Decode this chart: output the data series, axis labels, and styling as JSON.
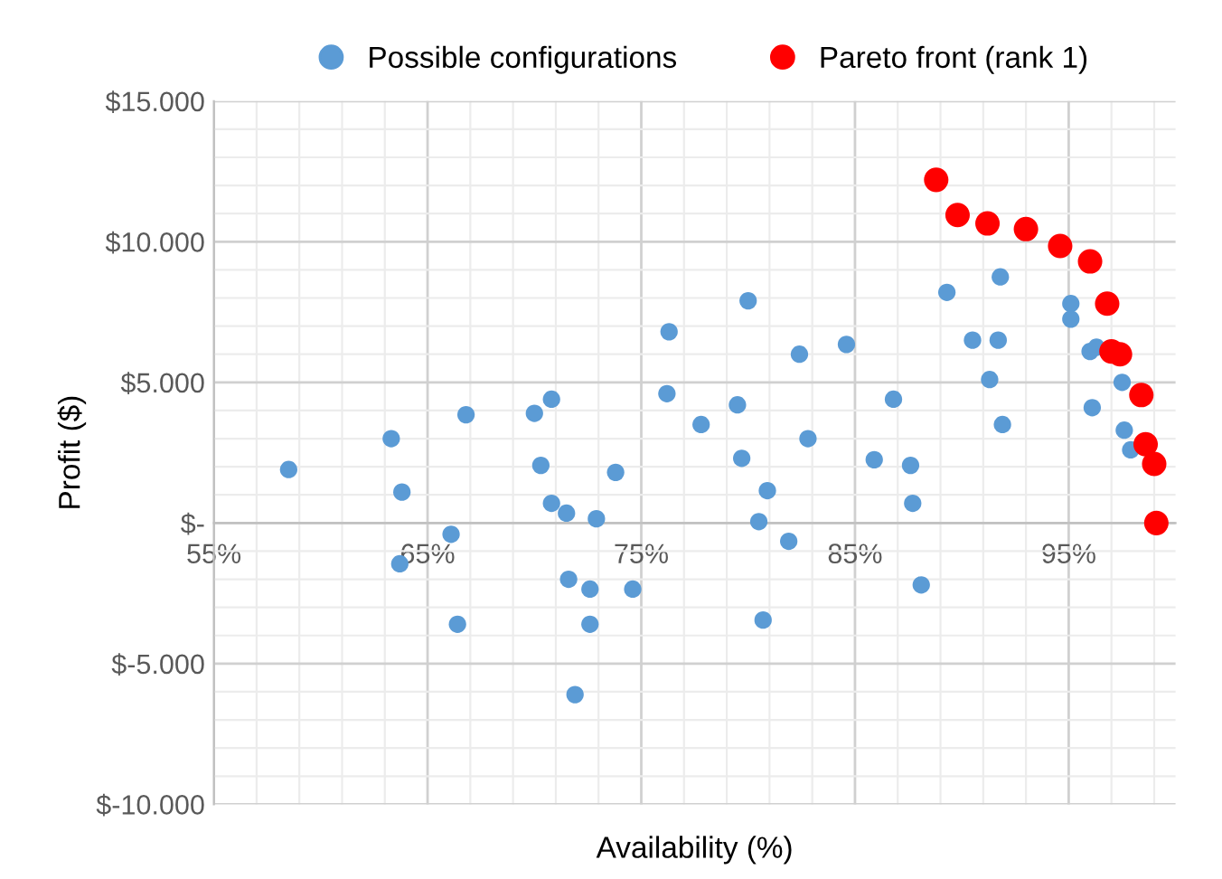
{
  "chart_data": {
    "type": "scatter",
    "xlabel": "Availability (%)",
    "ylabel": "Profit ($)",
    "xlim": [
      55,
      100
    ],
    "ylim": [
      -10000,
      15000
    ],
    "xticks": [
      {
        "value": 55,
        "label": "55%"
      },
      {
        "value": 65,
        "label": "65%"
      },
      {
        "value": 75,
        "label": "75%"
      },
      {
        "value": 85,
        "label": "85%"
      },
      {
        "value": 95,
        "label": "95%"
      }
    ],
    "yticks": [
      {
        "value": -10000,
        "label": "$-10.000"
      },
      {
        "value": -5000,
        "label": "$-5.000"
      },
      {
        "value": 0,
        "label": "$-"
      },
      {
        "value": 5000,
        "label": "$5.000"
      },
      {
        "value": 10000,
        "label": "$10.000"
      },
      {
        "value": 15000,
        "label": "$15.000"
      }
    ],
    "grid": true,
    "legend": "top",
    "marker": "circle",
    "series": [
      {
        "name": "Possible configurations",
        "color": "#5b9bd5",
        "x": [
          76.3,
          76.2,
          77.8,
          66.8,
          70.0,
          70.8,
          63.3,
          58.5,
          63.8,
          70.3,
          73.8,
          70.8,
          71.5,
          72.9,
          66.1,
          63.7,
          71.6,
          72.6,
          74.6,
          66.4,
          72.6,
          71.9,
          80.0,
          82.4,
          84.6,
          89.3,
          91.8,
          90.5,
          91.7,
          91.3,
          95.1,
          95.1,
          96.0,
          96.3,
          97.5,
          96.1,
          97.6,
          97.9,
          91.9,
          86.8,
          79.5,
          82.8,
          79.7,
          85.9,
          87.6,
          80.9,
          87.7,
          80.5,
          81.9,
          88.1,
          80.7
        ],
        "values": [
          6800,
          4600,
          3500,
          3850,
          3900,
          4400,
          3000,
          1900,
          1100,
          2050,
          1800,
          700,
          350,
          150,
          -400,
          -1450,
          -2000,
          -2350,
          -2350,
          -3600,
          -3600,
          -6100,
          7900,
          6000,
          6350,
          8200,
          8750,
          6500,
          6500,
          5100,
          7800,
          7250,
          6100,
          6250,
          5000,
          4100,
          3300,
          2600,
          3500,
          4400,
          4200,
          3000,
          2300,
          2250,
          2050,
          1150,
          700,
          50,
          -650,
          -2200,
          -3450
        ]
      },
      {
        "name": "Pareto front (rank 1)",
        "color": "#ff0000",
        "x": [
          88.8,
          89.8,
          91.2,
          93.0,
          94.6,
          96.0,
          96.8,
          97.0,
          97.4,
          98.4,
          98.6,
          99.0,
          99.1
        ],
        "values": [
          12200,
          10950,
          10650,
          10450,
          9850,
          9300,
          7800,
          6100,
          6000,
          4550,
          2800,
          2100,
          0
        ]
      }
    ]
  }
}
